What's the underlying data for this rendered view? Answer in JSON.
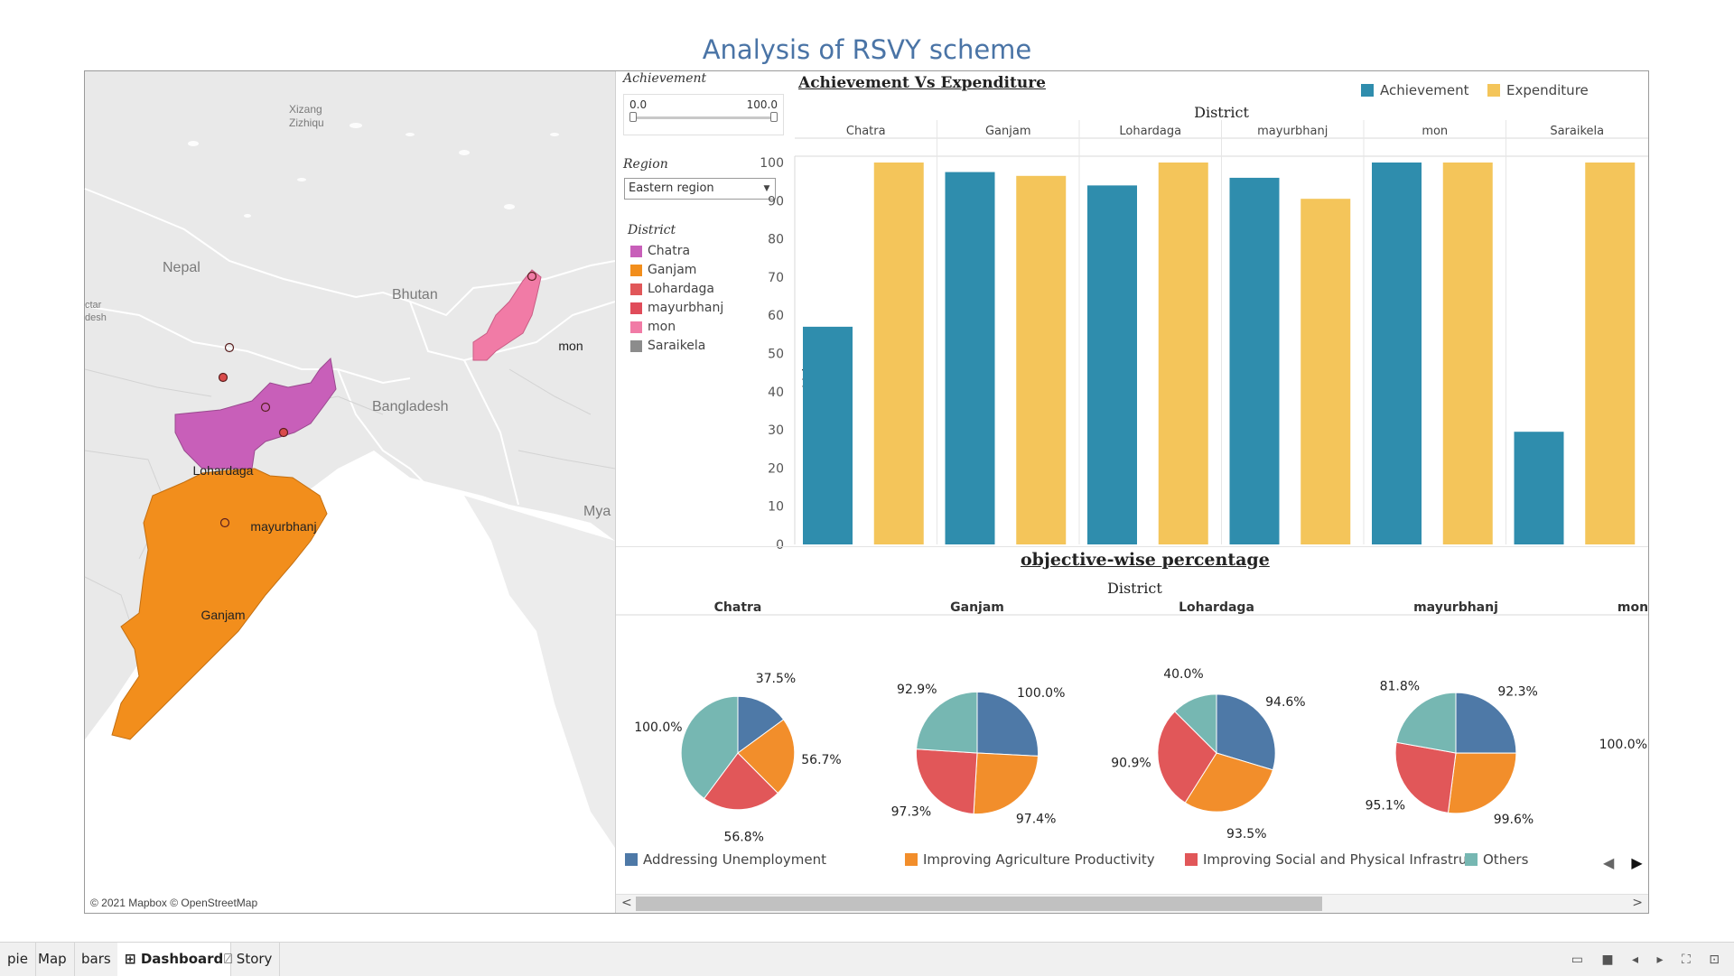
{
  "title": "Analysis of RSVY scheme",
  "map": {
    "credit": "© 2021 Mapbox © OpenStreetMap",
    "labels": {
      "xizang": "Xizang",
      "zizhiqu": "Zizhiqu",
      "nepal": "Nepal",
      "bhutan": "Bhutan",
      "bangladesh": "Bangladesh",
      "mya": "Mya",
      "ctar": "ctar",
      "desh": "desh",
      "mon": "mon",
      "lohardaga": "Lohardaga",
      "mayurbhanj": "mayurbhanj",
      "ganjam": "Ganjam"
    },
    "colors": {
      "jharkhand": "#c85fb9",
      "odisha": "#f28e1c",
      "nagaland": "#f17ba6",
      "point": "#d94b4b"
    }
  },
  "filters": {
    "achievement": {
      "title": "Achievement",
      "min_label": "0.0",
      "max_label": "100.0"
    },
    "region": {
      "title": "Region",
      "selected": "Eastern region"
    },
    "district": {
      "title": "District",
      "items": [
        {
          "label": "Chatra",
          "color": "#c85fb9"
        },
        {
          "label": "Ganjam",
          "color": "#f28e1c"
        },
        {
          "label": "Lohardaga",
          "color": "#e15759"
        },
        {
          "label": "mayurbhanj",
          "color": "#e04c5a"
        },
        {
          "label": "mon",
          "color": "#f17ba6"
        },
        {
          "label": "Saraikela",
          "color": "#8c8c8c"
        }
      ]
    }
  },
  "bar_section": {
    "title": "Achievement Vs Expenditure",
    "legend": [
      {
        "label": "Achievement",
        "color": "#2f8dad"
      },
      {
        "label": "Expenditure",
        "color": "#f4c55a"
      }
    ]
  },
  "pie_section": {
    "title": "objective-wise percentage",
    "header": "District",
    "legend": [
      {
        "label": "Addressing Unemployment",
        "color": "#4e79a7"
      },
      {
        "label": "Improving Agriculture Productivity",
        "color": "#f28e2b"
      },
      {
        "label": "Improving Social and Physical Infrastru..",
        "color": "#e15759"
      },
      {
        "label": "Others",
        "color": "#76b7b2"
      }
    ],
    "pies": [
      {
        "district": "Chatra",
        "values": [
          37.5,
          56.7,
          56.8,
          100.0
        ],
        "labels": [
          "37.5%",
          "56.7%",
          "56.8%",
          "100.0%"
        ]
      },
      {
        "district": "Ganjam",
        "values": [
          100.0,
          97.4,
          97.3,
          92.9
        ],
        "labels": [
          "100.0%",
          "97.4%",
          "97.3%",
          "92.9%"
        ]
      },
      {
        "district": "Lohardaga",
        "values": [
          94.6,
          93.5,
          90.9,
          40.0
        ],
        "labels": [
          "94.6%",
          "93.5%",
          "90.9%",
          "40.0%"
        ]
      },
      {
        "district": "mayurbhanj",
        "values": [
          92.3,
          99.6,
          95.1,
          81.8
        ],
        "labels": [
          "92.3%",
          "99.6%",
          "95.1%",
          "81.8%"
        ]
      }
    ],
    "partial_district": "mon",
    "partial_label": "100.0%"
  },
  "chart_data": [
    {
      "type": "bar",
      "title": "Achievement Vs Expenditure",
      "xlabel": "District",
      "ylabel": "Value",
      "categories": [
        "Chatra",
        "Ganjam",
        "Lohardaga",
        "mayurbhanj",
        "mon",
        "Saraikela"
      ],
      "series": [
        {
          "name": "Achievement",
          "values": [
            57,
            97.5,
            94,
            96,
            100,
            29.5
          ]
        },
        {
          "name": "Expenditure",
          "values": [
            100,
            96.5,
            100,
            90.5,
            100,
            100
          ]
        }
      ],
      "ylim": [
        0,
        100
      ],
      "yticks": [
        0,
        10,
        20,
        30,
        40,
        50,
        60,
        70,
        80,
        90,
        100
      ],
      "legend": "top-right",
      "grid": false
    },
    {
      "type": "pie",
      "title": "objective-wise percentage",
      "xlabel": "District",
      "categories": [
        "Addressing Unemployment",
        "Improving Agriculture Productivity",
        "Improving Social and Physical Infrastru..",
        "Others"
      ],
      "series": [
        {
          "name": "Chatra",
          "values": [
            37.5,
            56.7,
            56.8,
            100.0
          ]
        },
        {
          "name": "Ganjam",
          "values": [
            100.0,
            97.4,
            97.3,
            92.9
          ]
        },
        {
          "name": "Lohardaga",
          "values": [
            94.6,
            93.5,
            90.9,
            40.0
          ]
        },
        {
          "name": "mayurbhanj",
          "values": [
            92.3,
            99.6,
            95.1,
            81.8
          ]
        }
      ]
    }
  ],
  "scrollbar": {
    "left_arrow": "<",
    "right_arrow": ">"
  },
  "pager": {
    "prev": "◀",
    "next": "▶"
  },
  "tabs": [
    {
      "label": "pie"
    },
    {
      "label": "Map"
    },
    {
      "label": "bars"
    },
    {
      "label": "Dashboard",
      "icon": "dashboard-icon"
    },
    {
      "label": "Story",
      "icon": "story-icon"
    }
  ],
  "tab_icons": {
    "dashboard": "⊞",
    "story": "⍁"
  },
  "status_icons": "▭ ■ ◂ ▸ ⛶ ⊡"
}
